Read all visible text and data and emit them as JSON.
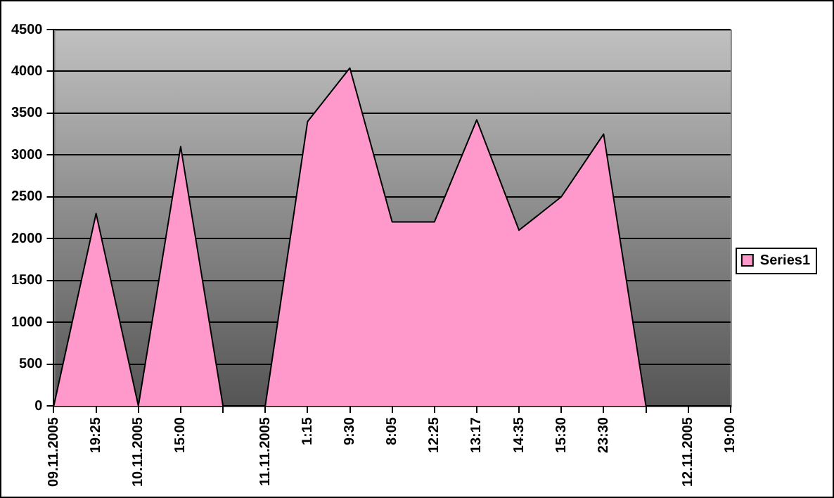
{
  "chart_data": {
    "type": "area",
    "categories": [
      "09.11.2005",
      "19:25",
      "10.11.2005",
      "15:00",
      null,
      "11.11.2005",
      "1:15",
      "9:30",
      "8:05",
      "12:25",
      "13:17",
      "14:35",
      "15:30",
      "23:30",
      null,
      "12.11.2005",
      "19:00"
    ],
    "series": [
      {
        "name": "Series1",
        "color": "#ff99cc",
        "values": [
          0,
          2300,
          0,
          3100,
          0,
          0,
          3400,
          4040,
          2200,
          2200,
          3420,
          2100,
          2500,
          3250,
          0,
          0,
          0
        ]
      }
    ],
    "ylim": [
      0,
      4500
    ],
    "yticks": [
      0,
      500,
      1000,
      1500,
      2000,
      2500,
      3000,
      3500,
      4000,
      4500
    ],
    "grid": "y",
    "legend": "right"
  }
}
